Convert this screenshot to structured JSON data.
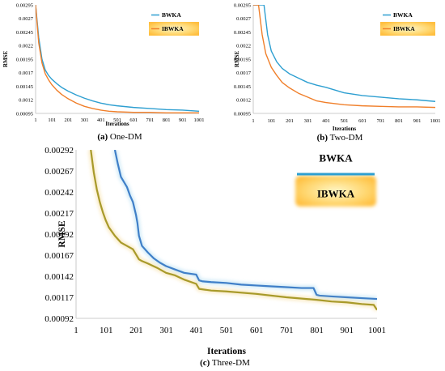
{
  "chart_data": [
    {
      "type": "line",
      "caption_letter": "(a)",
      "caption_text": "One-DM",
      "xlabel": "Iterations",
      "ylabel": "RMSE",
      "x_ticks": [
        "1",
        "101",
        "201",
        "301",
        "401",
        "501",
        "601",
        "701",
        "801",
        "901",
        "1001"
      ],
      "y_ticks": [
        "0.00295",
        "0.0027",
        "0.00245",
        "0.0022",
        "0.00195",
        "0.0017",
        "0.00145",
        "0.0012",
        "0.00095"
      ],
      "ylim": [
        0.00095,
        0.00295
      ],
      "xlim": [
        1,
        1001
      ],
      "legend_position": "top-right",
      "series": [
        {
          "name": "BWKA",
          "color": "#2e9fd1",
          "x": [
            1,
            20,
            40,
            60,
            80,
            100,
            130,
            160,
            200,
            250,
            300,
            350,
            400,
            450,
            500,
            600,
            700,
            800,
            900,
            1001
          ],
          "y": [
            0.00295,
            0.00235,
            0.00195,
            0.00175,
            0.00165,
            0.00158,
            0.0015,
            0.00143,
            0.00136,
            0.00129,
            0.00123,
            0.00118,
            0.00114,
            0.00111,
            0.00109,
            0.00106,
            0.00104,
            0.00102,
            0.00101,
            0.00099
          ]
        },
        {
          "name": "IBWKA",
          "color": "#f07f2a",
          "x": [
            1,
            20,
            40,
            60,
            80,
            100,
            130,
            160,
            200,
            250,
            300,
            350,
            400,
            450,
            500,
            600,
            700,
            800,
            900,
            1001
          ],
          "y": [
            0.00295,
            0.00225,
            0.00188,
            0.00168,
            0.00157,
            0.00148,
            0.00138,
            0.0013,
            0.00122,
            0.00114,
            0.00108,
            0.00104,
            0.00101,
            0.00099,
            0.00098,
            0.00097,
            0.00097,
            0.00096,
            0.00096,
            0.00096
          ]
        }
      ]
    },
    {
      "type": "line",
      "caption_letter": "(b)",
      "caption_text": "Two-DM",
      "xlabel": "Iterations",
      "ylabel": "RMSE",
      "x_ticks": [
        "1",
        "101",
        "201",
        "301",
        "401",
        "501",
        "601",
        "701",
        "801",
        "901",
        "1001"
      ],
      "y_ticks": [
        "0.00295",
        "0.0027",
        "0.00245",
        "0.0022",
        "0.00195",
        "0.0017",
        "0.00145",
        "0.0012",
        "0.00095"
      ],
      "ylim": [
        0.00095,
        0.00295
      ],
      "xlim": [
        1,
        1001
      ],
      "legend_position": "top-right",
      "series": [
        {
          "name": "BWKA",
          "color": "#2e9fd1",
          "x": [
            1,
            60,
            80,
            100,
            130,
            160,
            200,
            250,
            300,
            350,
            400,
            450,
            500,
            600,
            700,
            800,
            900,
            1001
          ],
          "y": [
            0.00295,
            0.00295,
            0.0024,
            0.0021,
            0.0019,
            0.00178,
            0.00168,
            0.0016,
            0.00152,
            0.00147,
            0.00143,
            0.00138,
            0.00133,
            0.00128,
            0.00125,
            0.00122,
            0.0012,
            0.00117
          ]
        },
        {
          "name": "IBWKA",
          "color": "#f07f2a",
          "x": [
            1,
            30,
            50,
            70,
            100,
            130,
            160,
            200,
            250,
            300,
            350,
            400,
            450,
            500,
            600,
            700,
            800,
            900,
            1001
          ],
          "y": [
            0.00295,
            0.00295,
            0.0024,
            0.00205,
            0.0018,
            0.00165,
            0.00152,
            0.00142,
            0.00132,
            0.00125,
            0.00118,
            0.00115,
            0.00113,
            0.00111,
            0.00109,
            0.00108,
            0.00107,
            0.00107,
            0.00106
          ]
        }
      ]
    },
    {
      "type": "line",
      "caption_letter": "(c)",
      "caption_text": "Three-DM",
      "xlabel": "Iterations",
      "ylabel": "RMSE",
      "x_ticks": [
        "1",
        "101",
        "201",
        "301",
        "401",
        "501",
        "601",
        "701",
        "801",
        "901",
        "1001"
      ],
      "y_ticks": [
        "0.00292",
        "0.00267",
        "0.00242",
        "0.00217",
        "0.00192",
        "0.00167",
        "0.00142",
        "0.00117",
        "0.00092"
      ],
      "ylim": [
        0.00092,
        0.00292
      ],
      "xlim": [
        1,
        1001
      ],
      "legend_position": "top-right",
      "series": [
        {
          "name": "BWKA",
          "color": "#2e9fd1",
          "x": [
            130,
            140,
            150,
            170,
            180,
            190,
            200,
            205,
            210,
            220,
            240,
            260,
            280,
            300,
            330,
            360,
            400,
            410,
            420,
            450,
            500,
            550,
            600,
            650,
            700,
            750,
            790,
            800,
            810,
            850,
            900,
            950,
            1001
          ],
          "y": [
            0.00292,
            0.00275,
            0.0026,
            0.00248,
            0.00238,
            0.0023,
            0.00215,
            0.00205,
            0.0019,
            0.00178,
            0.0017,
            0.00163,
            0.00158,
            0.00154,
            0.0015,
            0.00146,
            0.00144,
            0.00137,
            0.00136,
            0.00135,
            0.00134,
            0.00132,
            0.00131,
            0.0013,
            0.00129,
            0.00128,
            0.00128,
            0.0012,
            0.00119,
            0.00118,
            0.00117,
            0.00116,
            0.00115
          ]
        },
        {
          "name": "IBWKA",
          "color": "#f07f2a",
          "x": [
            50,
            60,
            70,
            80,
            90,
            100,
            110,
            130,
            150,
            170,
            190,
            200,
            210,
            220,
            240,
            270,
            300,
            330,
            360,
            400,
            410,
            450,
            500,
            600,
            700,
            800,
            850,
            900,
            950,
            990,
            1001
          ],
          "y": [
            0.00292,
            0.00265,
            0.00245,
            0.0023,
            0.00218,
            0.00208,
            0.002,
            0.0019,
            0.00182,
            0.00178,
            0.00174,
            0.00168,
            0.00162,
            0.0016,
            0.00157,
            0.00152,
            0.00146,
            0.00143,
            0.00138,
            0.00133,
            0.00127,
            0.00125,
            0.00124,
            0.00121,
            0.00117,
            0.00114,
            0.00112,
            0.00111,
            0.00109,
            0.00108,
            0.00102
          ]
        }
      ]
    }
  ]
}
